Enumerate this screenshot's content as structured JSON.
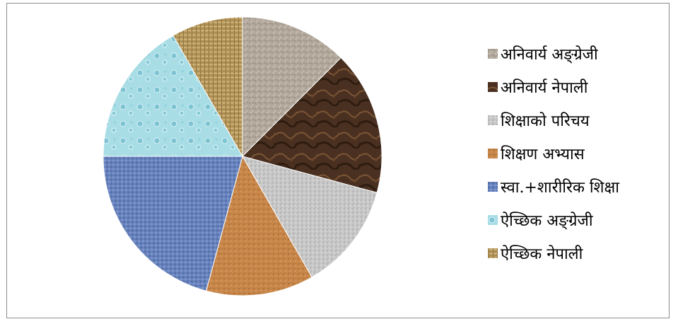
{
  "chart_data": {
    "type": "pie",
    "title": "",
    "legend_position": "right",
    "slices": [
      {
        "label": "अनिवार्य अङ्ग्रेजी",
        "value": 12.5,
        "color": "#b3a89c",
        "pattern": "granite"
      },
      {
        "label": "अनिवार्य नेपाली",
        "value": 16.7,
        "color": "#4a3020",
        "pattern": "marble"
      },
      {
        "label": "शिक्षाको परिचय",
        "value": 12.5,
        "color": "#c4c4c4",
        "pattern": "speckle"
      },
      {
        "label": "शिक्षण अभ्यास",
        "value": 12.5,
        "color": "#c8874a",
        "pattern": "cork"
      },
      {
        "label": "स्वा.+शारीरिक शिक्षा",
        "value": 20.8,
        "color": "#6a85c0",
        "pattern": "weave"
      },
      {
        "label": "ऐच्छिक अङ्ग्रेजी",
        "value": 16.7,
        "color": "#a8dde6",
        "pattern": "droplets"
      },
      {
        "label": "ऐच्छिक नेपाली",
        "value": 8.3,
        "color": "#b99a5e",
        "pattern": "burlap"
      }
    ]
  }
}
